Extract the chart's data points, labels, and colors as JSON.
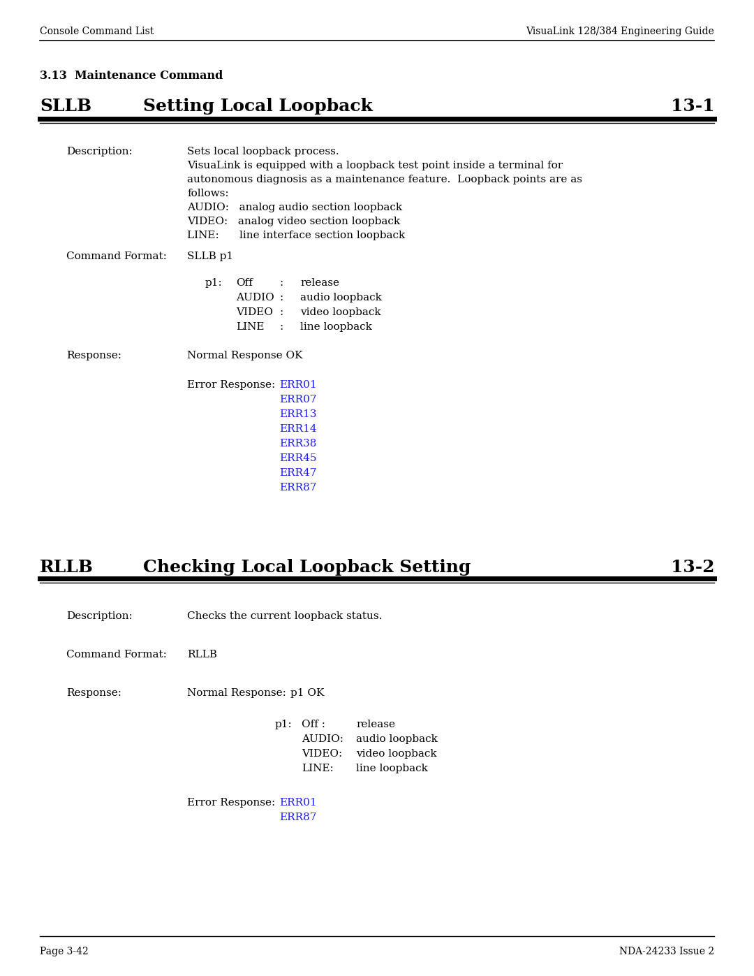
{
  "bg_color": "#ffffff",
  "header_left": "Console Command List",
  "header_right": "VisuaLink 128/384 Engineering Guide",
  "footer_left": "Page 3-42",
  "footer_right": "NDA-24233 Issue 2",
  "section_title": "3.13  Maintenance Command",
  "sllb_title": "SLLB",
  "sllb_subtitle": "Setting Local Loopback",
  "sllb_number": "13-1",
  "rllb_title": "RLLB",
  "rllb_subtitle": "Checking Local Loopback Setting",
  "rllb_number": "13-2",
  "blue_color": "#1a1aff",
  "black_color": "#000000"
}
